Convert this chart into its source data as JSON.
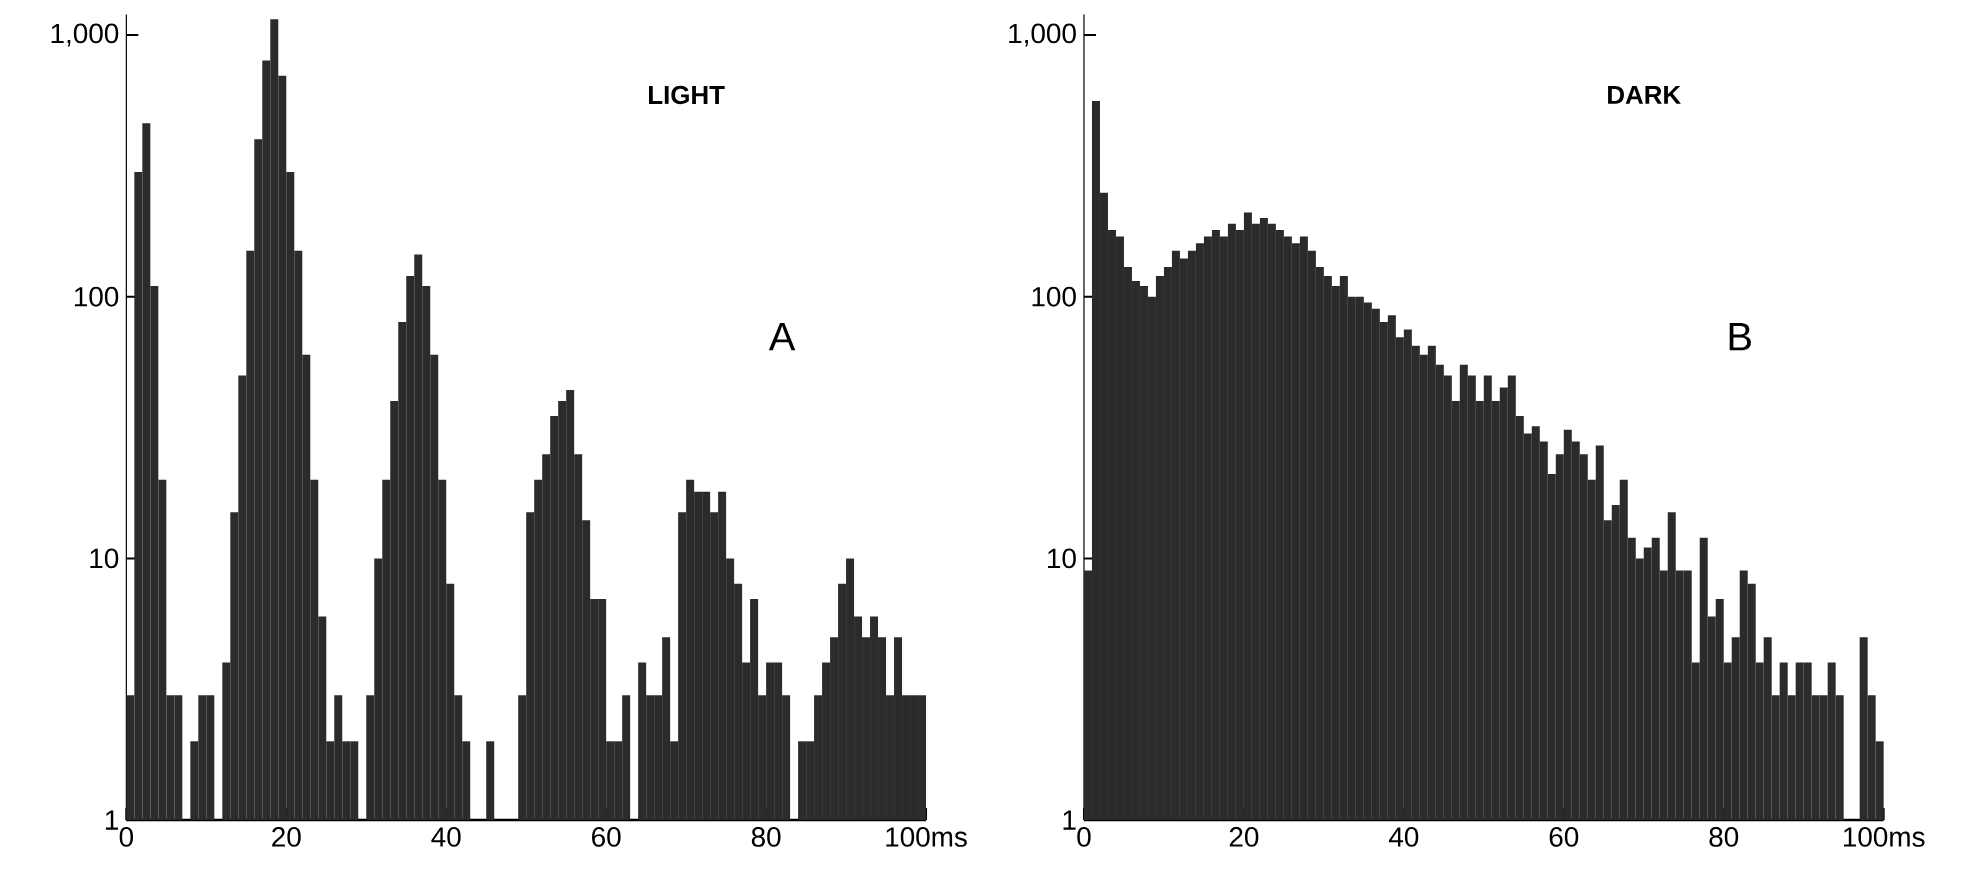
{
  "chart_data": [
    {
      "type": "histogram",
      "title": "LIGHT",
      "annotations": [
        "A"
      ],
      "color": "#2b2b2b",
      "log": "y",
      "grid": false,
      "bins": [
        0,
        1,
        2,
        3,
        4,
        5,
        6,
        7,
        8,
        9,
        10,
        11,
        12,
        13,
        14,
        15,
        16,
        17,
        18,
        19,
        20,
        21,
        22,
        23,
        24,
        25,
        26,
        27,
        28,
        29,
        30,
        31,
        32,
        33,
        34,
        35,
        36,
        37,
        38,
        39,
        40,
        41,
        42,
        43,
        44,
        45,
        46,
        47,
        48,
        49,
        50,
        51,
        52,
        53,
        54,
        55,
        56,
        57,
        58,
        59,
        60,
        61,
        62,
        63,
        64,
        65,
        66,
        67,
        68,
        69,
        70,
        71,
        72,
        73,
        74,
        75,
        76,
        77,
        78,
        79,
        80,
        81,
        82,
        83,
        84,
        85,
        86,
        87,
        88,
        89,
        90,
        91,
        92,
        93,
        94,
        95,
        96,
        97,
        98,
        99,
        100
      ],
      "values": [
        3,
        300,
        460,
        110,
        20,
        3,
        3,
        null,
        2,
        3,
        3,
        null,
        4,
        15,
        50,
        150,
        400,
        800,
        1150,
        700,
        300,
        150,
        60,
        20,
        6,
        2,
        3,
        2,
        2,
        null,
        3,
        10,
        20,
        40,
        80,
        120,
        145,
        110,
        60,
        20,
        8,
        3,
        2,
        null,
        null,
        2,
        null,
        null,
        null,
        3,
        15,
        20,
        25,
        35,
        40,
        44,
        25,
        14,
        7,
        7,
        2,
        2,
        3,
        null,
        4,
        3,
        3,
        5,
        2,
        15,
        20,
        18,
        18,
        15,
        18,
        10,
        8,
        4,
        7,
        3,
        4,
        4,
        3,
        null,
        2,
        2,
        3,
        4,
        5,
        8,
        10,
        6,
        5,
        6,
        5,
        3,
        5,
        3,
        3,
        3
      ],
      "xlim": [
        0,
        100
      ],
      "xticks": [
        0,
        20,
        40,
        60,
        80,
        {
          "value": 100,
          "label": "100ms"
        }
      ],
      "ylim": [
        1,
        1200
      ],
      "yticks": [
        1,
        10,
        100,
        {
          "value": 1000,
          "label": "1,000"
        }
      ]
    },
    {
      "type": "histogram",
      "title": "DARK",
      "annotations": [
        "B"
      ],
      "color": "#2b2b2b",
      "log": "y",
      "grid": false,
      "bins": [
        0,
        1,
        2,
        3,
        4,
        5,
        6,
        7,
        8,
        9,
        10,
        11,
        12,
        13,
        14,
        15,
        16,
        17,
        18,
        19,
        20,
        21,
        22,
        23,
        24,
        25,
        26,
        27,
        28,
        29,
        30,
        31,
        32,
        33,
        34,
        35,
        36,
        37,
        38,
        39,
        40,
        41,
        42,
        43,
        44,
        45,
        46,
        47,
        48,
        49,
        50,
        51,
        52,
        53,
        54,
        55,
        56,
        57,
        58,
        59,
        60,
        61,
        62,
        63,
        64,
        65,
        66,
        67,
        68,
        69,
        70,
        71,
        72,
        73,
        74,
        75,
        76,
        77,
        78,
        79,
        80,
        81,
        82,
        83,
        84,
        85,
        86,
        87,
        88,
        89,
        90,
        91,
        92,
        93,
        94,
        95,
        96,
        97,
        98,
        99,
        100
      ],
      "values": [
        9,
        560,
        250,
        180,
        170,
        130,
        115,
        110,
        100,
        120,
        130,
        150,
        140,
        150,
        160,
        170,
        180,
        170,
        190,
        180,
        210,
        190,
        200,
        190,
        180,
        170,
        160,
        170,
        150,
        130,
        120,
        110,
        120,
        100,
        100,
        95,
        90,
        80,
        85,
        70,
        75,
        65,
        60,
        65,
        55,
        50,
        40,
        55,
        50,
        40,
        50,
        40,
        45,
        50,
        35,
        30,
        32,
        28,
        21,
        25,
        31,
        28,
        25,
        20,
        27,
        14,
        16,
        20,
        12,
        10,
        11,
        12,
        9,
        15,
        9,
        9,
        4,
        12,
        6,
        7,
        4,
        5,
        9,
        8,
        4,
        5,
        3,
        4,
        3,
        4,
        4,
        3,
        3,
        4,
        3,
        null,
        null,
        5,
        3,
        2
      ],
      "xlim": [
        0,
        100
      ],
      "xticks": [
        0,
        20,
        40,
        60,
        80,
        {
          "value": 100,
          "label": "100ms"
        }
      ],
      "ylim": [
        1,
        1200
      ],
      "yticks": [
        1,
        10,
        100,
        {
          "value": 1000,
          "label": "1,000"
        }
      ]
    }
  ]
}
